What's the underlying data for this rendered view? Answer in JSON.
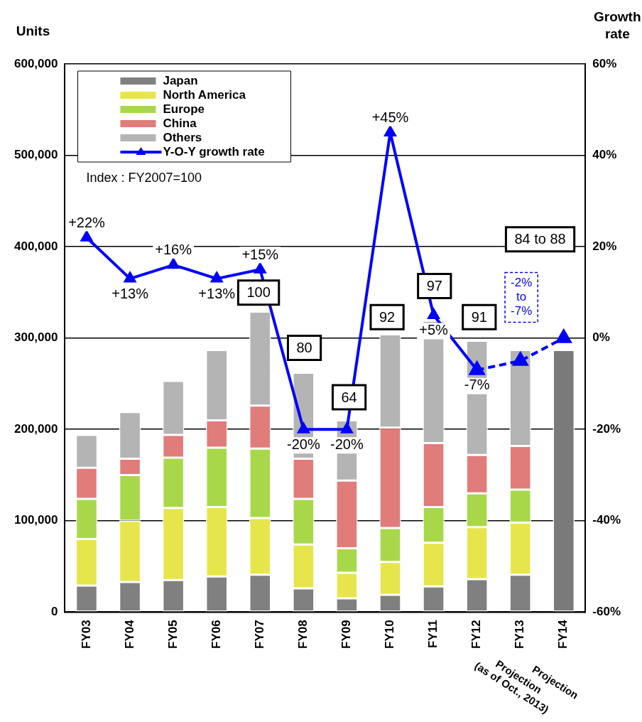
{
  "chart_data": {
    "type": "bar",
    "stacked": true,
    "ylabel": "Units",
    "y2label": "Growth rate",
    "categories": [
      "FY03",
      "FY04",
      "FY05",
      "FY06",
      "FY07",
      "FY08",
      "FY09",
      "FY10",
      "FY11",
      "FY12",
      "FY13",
      "FY14"
    ],
    "series": [
      {
        "name": "Japan",
        "color": "#808080",
        "values": [
          29000,
          33000,
          35000,
          39000,
          41000,
          26000,
          15000,
          19000,
          28000,
          36000,
          41000,
          null
        ]
      },
      {
        "name": "North America",
        "color": "#e6e64c",
        "values": [
          51000,
          67000,
          79000,
          76000,
          62000,
          48000,
          28000,
          36000,
          48000,
          57000,
          57000,
          null
        ]
      },
      {
        "name": "Europe",
        "color": "#a8d84a",
        "values": [
          44000,
          50000,
          55000,
          65000,
          76000,
          50000,
          27000,
          37000,
          39000,
          37000,
          36000,
          null
        ]
      },
      {
        "name": "China",
        "color": "#e07c7a",
        "values": [
          34000,
          18000,
          25000,
          30000,
          47000,
          44000,
          74000,
          110000,
          70000,
          42000,
          48000,
          null
        ]
      },
      {
        "name": "Others",
        "color": "#b4b4b4",
        "values": [
          36000,
          51000,
          59000,
          77000,
          103000,
          94000,
          66000,
          102000,
          134000,
          125000,
          105000,
          null
        ]
      },
      {
        "color": "#7a7a7a",
        "values": [
          null,
          null,
          null,
          null,
          null,
          null,
          null,
          null,
          null,
          null,
          null,
          287000
        ]
      },
      {
        "name": "Y-O-Y growth rate",
        "type": "line",
        "axis": "y2",
        "color": "#0000ff",
        "marker": "triangle",
        "values": [
          22,
          13,
          16,
          13,
          15,
          -20,
          -20,
          45,
          5,
          -7,
          null,
          null
        ],
        "value_labels": [
          "+22%",
          "+13%",
          "+16%",
          "+13%",
          "+15%",
          "-20%",
          "-20%",
          "+45%",
          "+5%",
          "-7%",
          null,
          null
        ]
      },
      {
        "type": "line",
        "axis": "y2",
        "color": "#0000ff",
        "marker": "triangle",
        "line_style": "dashed",
        "values": [
          null,
          null,
          null,
          null,
          null,
          null,
          null,
          null,
          null,
          -7,
          -5,
          0
        ]
      }
    ],
    "ylim": [
      0,
      600000
    ],
    "yticks": [
      {
        "value": 0,
        "label": "0"
      },
      {
        "value": 100000,
        "label": "100,000"
      },
      {
        "value": 200000,
        "label": "200,000"
      },
      {
        "value": 300000,
        "label": "300,000"
      },
      {
        "value": 400000,
        "label": "400,000"
      },
      {
        "value": 500000,
        "label": "500,000"
      },
      {
        "value": 600000,
        "label": "600,000"
      }
    ],
    "y2lim": [
      -60,
      60
    ],
    "y2ticks": [
      {
        "value": -60,
        "label": "-60%"
      },
      {
        "value": -40,
        "label": "-40%"
      },
      {
        "value": -20,
        "label": "-20%"
      },
      {
        "value": 0,
        "label": "0%"
      },
      {
        "value": 20,
        "label": "20%"
      },
      {
        "value": 40,
        "label": "40%"
      },
      {
        "value": 60,
        "label": "60%"
      }
    ],
    "grid": "y",
    "legend": "top left",
    "annotations": [
      "Index : FY2007=100",
      "100",
      "80",
      "64",
      "92",
      "97",
      "91",
      "84 to 88",
      "-2% to -7%",
      "Projection (as of Oct., 2013)",
      "Projection"
    ]
  }
}
